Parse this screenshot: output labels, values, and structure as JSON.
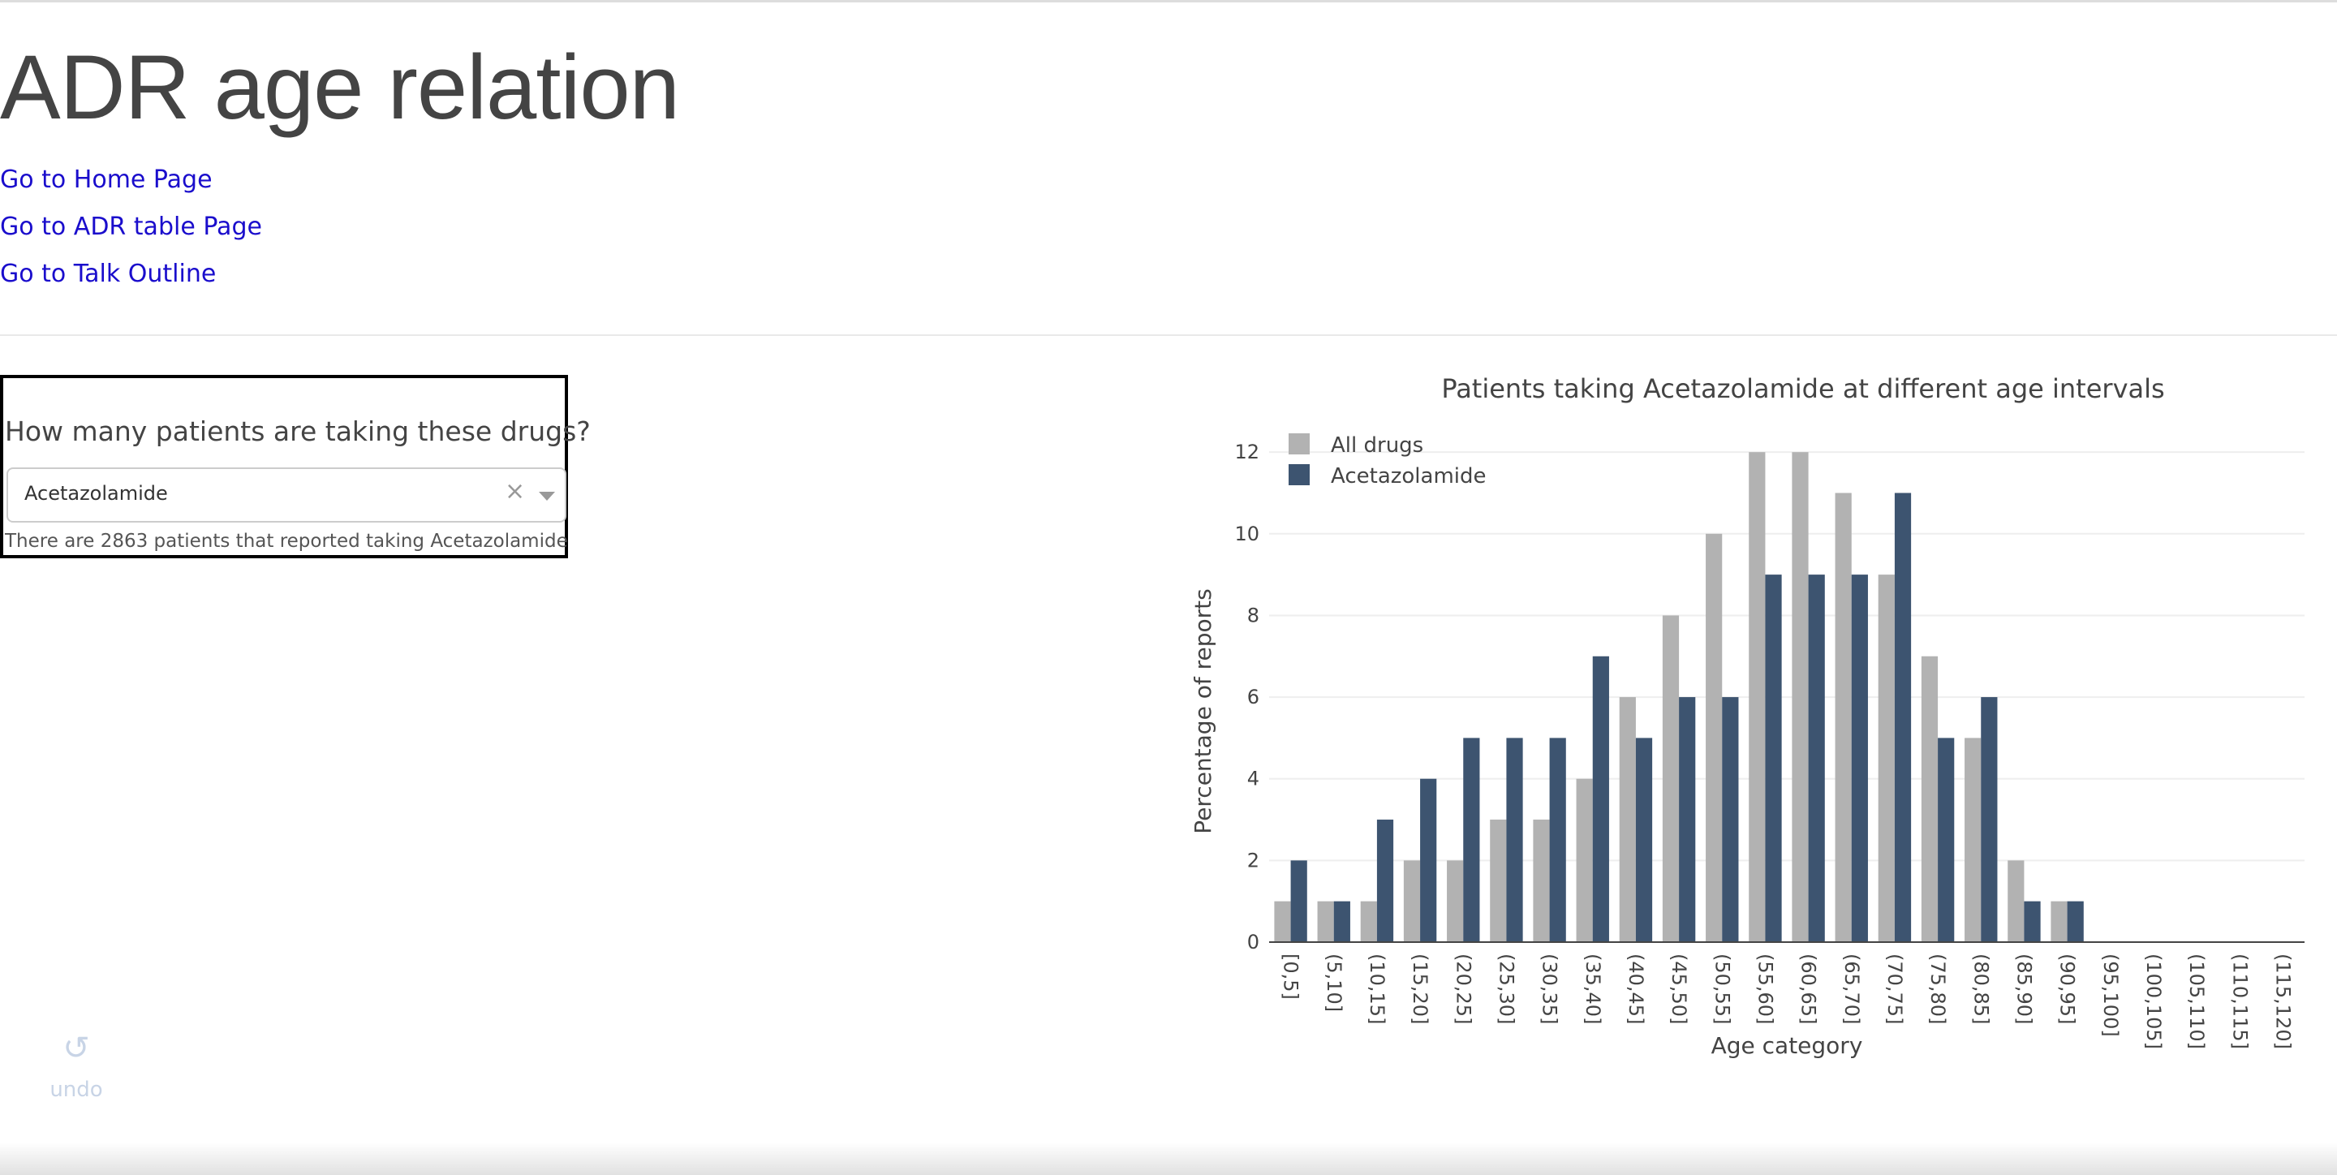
{
  "page": {
    "title": "ADR age relation"
  },
  "nav": {
    "links": [
      {
        "label": "Go to Home Page"
      },
      {
        "label": "Go to ADR table Page"
      },
      {
        "label": "Go to Talk Outline"
      }
    ]
  },
  "drug_selector": {
    "question": "How many patients are taking these drugs?",
    "selected_value": "Acetazolamide",
    "clear_symbol": "×",
    "result_text": "There are 2863 patients that reported taking Acetazolamide"
  },
  "undo": {
    "label": "undo",
    "icon": "undo-icon"
  },
  "colors": {
    "link": "#1a0dcc",
    "series_all": "#b2b2b2",
    "series_drug": "#3d5470"
  },
  "chart_data": {
    "type": "bar",
    "title": "Patients taking Acetazolamide at different age intervals",
    "xlabel": "Age category",
    "ylabel": "Percentage of reports",
    "ylim": [
      0,
      12.5
    ],
    "yticks": [
      0,
      2,
      4,
      6,
      8,
      10,
      12
    ],
    "grid": true,
    "legend_position": "top-left",
    "categories": [
      "[0,5]",
      "(5,10]",
      "(10,15]",
      "(15,20]",
      "(20,25]",
      "(25,30]",
      "(30,35]",
      "(35,40]",
      "(40,45]",
      "(45,50]",
      "(50,55]",
      "(55,60]",
      "(60,65]",
      "(65,70]",
      "(70,75]",
      "(75,80]",
      "(80,85]",
      "(85,90]",
      "(90,95]",
      "(95,100]",
      "(100,105]",
      "(105,110]",
      "(110,115]",
      "(115,120]"
    ],
    "series": [
      {
        "name": "All drugs",
        "color": "#b2b2b2",
        "values": [
          1,
          1,
          1,
          2,
          2,
          3,
          3,
          4,
          6,
          8,
          10,
          12,
          12,
          11,
          9,
          7,
          5,
          2,
          1,
          0,
          0,
          0,
          0,
          0
        ]
      },
      {
        "name": "Acetazolamide",
        "color": "#3d5470",
        "values": [
          2,
          1,
          3,
          4,
          5,
          5,
          5,
          7,
          5,
          6,
          6,
          9,
          9,
          9,
          11,
          5,
          6,
          1,
          1,
          0,
          0,
          0,
          0,
          0
        ]
      }
    ]
  }
}
